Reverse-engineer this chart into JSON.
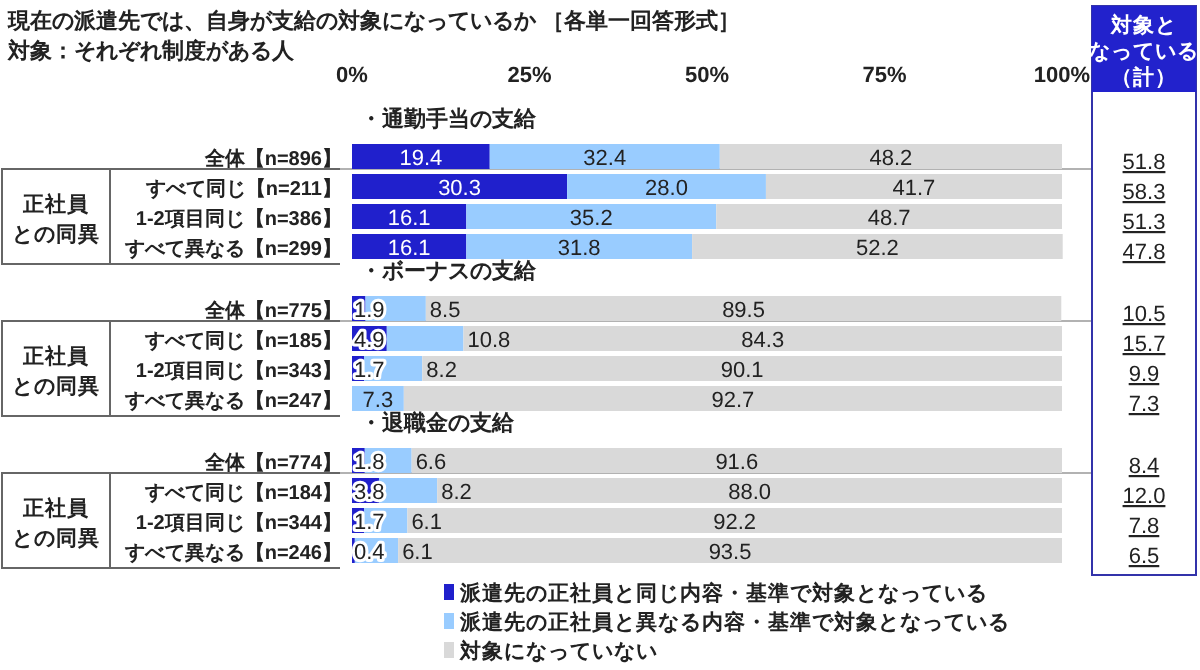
{
  "chart_data": {
    "type": "bar",
    "orientation": "horizontal",
    "stacked": true,
    "title": "現在の派遣先では、自身が支給の対象になっているか ［各単一回答形式］",
    "subtitle": "対象：それぞれ制度がある人",
    "categories": [
      "全体【n=896】",
      "すべて同じ【n=211】",
      "1-2項目同じ【n=386】",
      "すべて異なる【n=299】",
      "全体【n=775】",
      "すべて同じ【n=185】",
      "1-2項目同じ【n=343】",
      "すべて異なる【n=247】",
      "全体【n=774】",
      "すべて同じ【n=184】",
      "1-2項目同じ【n=344】",
      "すべて異なる【n=246】"
    ],
    "series": [
      {
        "name": "派遣先の正社員と同じ内容・基準で対象となっている",
        "color": "#2020cc",
        "values": [
          19.4,
          30.3,
          16.1,
          16.1,
          1.9,
          4.9,
          1.7,
          null,
          1.8,
          3.8,
          1.7,
          0.4
        ],
        "value_labels": [
          "19.4",
          "30.3",
          "16.1",
          "16.1",
          "1.9",
          "4.9",
          "1.7",
          null,
          "1.8",
          "3.8",
          "1.7",
          "0.4"
        ]
      },
      {
        "name": "派遣先の正社員と異なる内容・基準で対象となっている",
        "color": "#99ccff",
        "values": [
          32.4,
          28.0,
          35.2,
          31.8,
          8.5,
          10.8,
          8.2,
          7.3,
          6.6,
          8.2,
          6.1,
          6.1
        ],
        "value_labels": [
          "32.4",
          "28.0",
          "35.2",
          "31.8",
          "8.5",
          "10.8",
          "8.2",
          "7.3",
          "6.6",
          "8.2",
          "6.1",
          "6.1"
        ]
      },
      {
        "name": "対象になっていない",
        "color": "#d9d9d9",
        "values": [
          48.2,
          41.7,
          48.7,
          52.2,
          89.5,
          84.3,
          90.1,
          92.7,
          91.6,
          88.0,
          92.2,
          93.5
        ],
        "value_labels": [
          "48.2",
          "41.7",
          "48.7",
          "52.2",
          "89.5",
          "84.3",
          "90.1",
          "92.7",
          "91.6",
          "88.0",
          "92.2",
          "93.5"
        ]
      }
    ],
    "xlim": [
      0,
      100
    ],
    "xticks": [
      {
        "value": 0,
        "label": "0%"
      },
      {
        "value": 25,
        "label": "25%"
      },
      {
        "value": 50,
        "label": "50%"
      },
      {
        "value": 75,
        "label": "75%"
      },
      {
        "value": 100,
        "label": "100%"
      }
    ],
    "annotations": [
      "・通勤手当の支給",
      "・ボーナスの支給",
      "・退職金の支給",
      "正社員との同異",
      "正社員との同異",
      "正社員との同異",
      "対象となっている（計）",
      "51.8",
      "58.3",
      "51.3",
      "47.8",
      "10.5",
      "15.7",
      "9.9",
      "7.3",
      "8.4",
      "12.0",
      "7.8",
      "6.5"
    ],
    "legend": "bottom"
  }
}
